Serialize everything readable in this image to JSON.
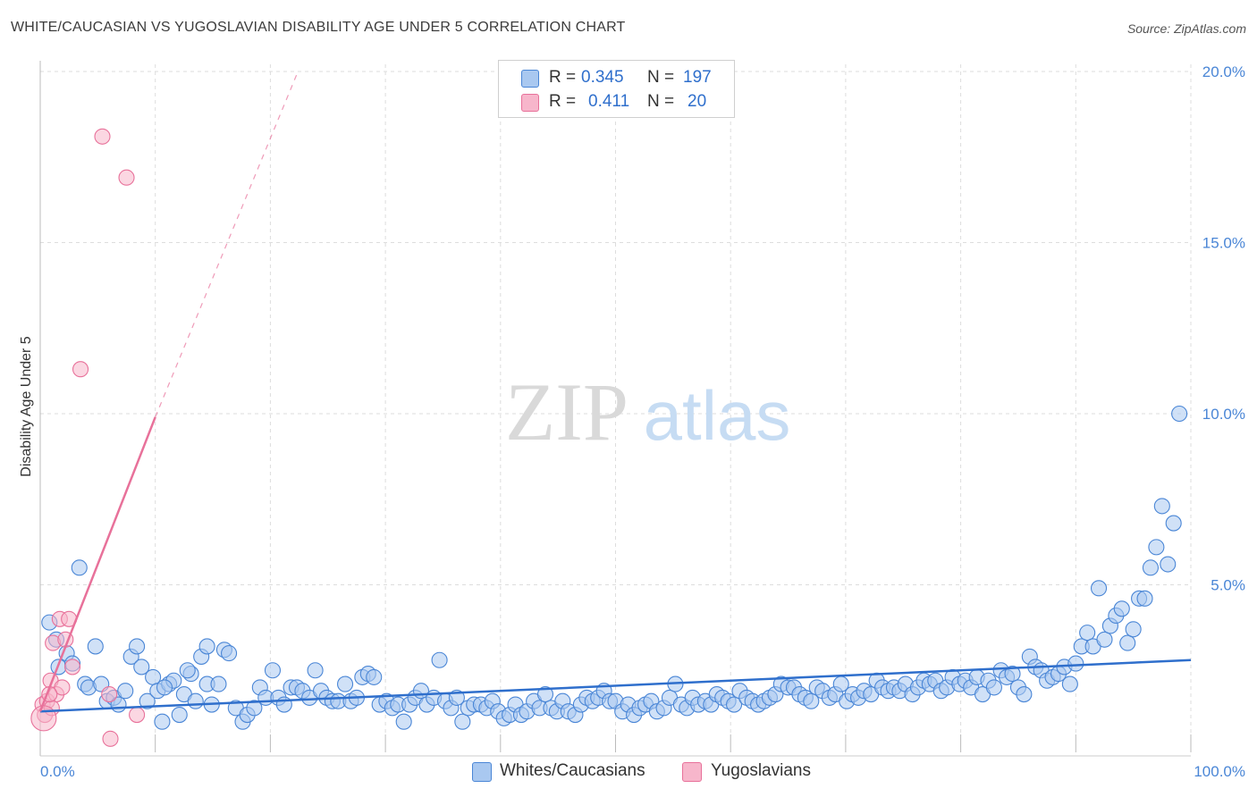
{
  "title": "WHITE/CAUCASIAN VS YUGOSLAVIAN DISABILITY AGE UNDER 5 CORRELATION CHART",
  "source": "Source: ZipAtlas.com",
  "watermark": {
    "zip": "ZIP",
    "atlas": "atlas"
  },
  "legend": {
    "rows": [
      {
        "r_label": "R =",
        "r_value": "0.345",
        "n_label": "N =",
        "n_value": "197"
      },
      {
        "r_label": "R =",
        "r_value": "0.411",
        "n_label": "N =",
        "n_value": "20"
      }
    ]
  },
  "bottom_legend": {
    "series1": "Whites/Caucasians",
    "series2": "Yugoslavians"
  },
  "colors": {
    "blue": "#4a86d6",
    "blue_fill": "#a9c8f0",
    "pink": "#e8719a",
    "pink_fill": "#f7b6cb",
    "grid": "#dddddd"
  },
  "chart_data": {
    "type": "scatter",
    "xlabel": "",
    "ylabel": "Disability Age Under 5",
    "xlim": [
      0,
      100
    ],
    "ylim": [
      0,
      20
    ],
    "x_tick_labels": [
      "0.0%",
      "100.0%"
    ],
    "y_ticks": [
      5,
      10,
      15,
      20
    ],
    "y_tick_labels": [
      "5.0%",
      "10.0%",
      "15.0%",
      "20.0%"
    ],
    "grid": true,
    "legend_placement": "top-center",
    "series": [
      {
        "name": "Whites/Caucasians",
        "trend": {
          "x": [
            0,
            100
          ],
          "y": [
            1.3,
            2.8
          ]
        },
        "points": [
          [
            0.8,
            3.9
          ],
          [
            1.4,
            3.4
          ],
          [
            1.6,
            2.6
          ],
          [
            2.3,
            3.0
          ],
          [
            2.8,
            2.7
          ],
          [
            3.4,
            5.5
          ],
          [
            3.9,
            2.1
          ],
          [
            4.2,
            2.0
          ],
          [
            4.8,
            3.2
          ],
          [
            5.3,
            2.1
          ],
          [
            5.8,
            1.6
          ],
          [
            6.4,
            1.7
          ],
          [
            6.8,
            1.5
          ],
          [
            7.4,
            1.9
          ],
          [
            7.9,
            2.9
          ],
          [
            8.4,
            3.2
          ],
          [
            8.8,
            2.6
          ],
          [
            9.3,
            1.6
          ],
          [
            9.8,
            2.3
          ],
          [
            10.2,
            1.9
          ],
          [
            10.6,
            1.0
          ],
          [
            11.2,
            2.1
          ],
          [
            11.6,
            2.2
          ],
          [
            12.1,
            1.2
          ],
          [
            12.5,
            1.8
          ],
          [
            13.1,
            2.4
          ],
          [
            13.5,
            1.6
          ],
          [
            14.0,
            2.9
          ],
          [
            14.5,
            2.1
          ],
          [
            14.9,
            1.5
          ],
          [
            15.5,
            2.1
          ],
          [
            16.0,
            3.1
          ],
          [
            16.4,
            3.0
          ],
          [
            17.0,
            1.4
          ],
          [
            17.6,
            1.0
          ],
          [
            18.0,
            1.2
          ],
          [
            18.6,
            1.4
          ],
          [
            19.1,
            2.0
          ],
          [
            19.6,
            1.7
          ],
          [
            20.2,
            2.5
          ],
          [
            20.7,
            1.7
          ],
          [
            21.2,
            1.5
          ],
          [
            21.8,
            2.0
          ],
          [
            22.3,
            2.0
          ],
          [
            22.8,
            1.9
          ],
          [
            23.4,
            1.7
          ],
          [
            23.9,
            2.5
          ],
          [
            24.4,
            1.9
          ],
          [
            24.9,
            1.7
          ],
          [
            25.4,
            1.6
          ],
          [
            25.9,
            1.6
          ],
          [
            26.5,
            2.1
          ],
          [
            27.0,
            1.6
          ],
          [
            27.5,
            1.7
          ],
          [
            28.0,
            2.3
          ],
          [
            28.5,
            2.4
          ],
          [
            29.0,
            2.3
          ],
          [
            29.5,
            1.5
          ],
          [
            30.1,
            1.6
          ],
          [
            30.6,
            1.4
          ],
          [
            31.1,
            1.5
          ],
          [
            31.6,
            1.0
          ],
          [
            32.1,
            1.5
          ],
          [
            32.6,
            1.7
          ],
          [
            33.1,
            1.9
          ],
          [
            33.6,
            1.5
          ],
          [
            34.2,
            1.7
          ],
          [
            34.7,
            2.8
          ],
          [
            35.2,
            1.6
          ],
          [
            35.7,
            1.4
          ],
          [
            36.2,
            1.7
          ],
          [
            36.7,
            1.0
          ],
          [
            37.2,
            1.4
          ],
          [
            37.7,
            1.5
          ],
          [
            38.3,
            1.5
          ],
          [
            38.8,
            1.4
          ],
          [
            39.3,
            1.6
          ],
          [
            39.8,
            1.3
          ],
          [
            40.3,
            1.1
          ],
          [
            40.8,
            1.2
          ],
          [
            41.3,
            1.5
          ],
          [
            41.8,
            1.2
          ],
          [
            42.3,
            1.3
          ],
          [
            42.9,
            1.6
          ],
          [
            43.4,
            1.4
          ],
          [
            43.9,
            1.8
          ],
          [
            44.4,
            1.4
          ],
          [
            44.9,
            1.3
          ],
          [
            45.4,
            1.6
          ],
          [
            45.9,
            1.3
          ],
          [
            46.5,
            1.2
          ],
          [
            47.0,
            1.5
          ],
          [
            47.5,
            1.7
          ],
          [
            48.0,
            1.6
          ],
          [
            48.5,
            1.7
          ],
          [
            49.0,
            1.9
          ],
          [
            49.5,
            1.6
          ],
          [
            50.0,
            1.6
          ],
          [
            50.6,
            1.3
          ],
          [
            51.1,
            1.5
          ],
          [
            51.6,
            1.2
          ],
          [
            52.1,
            1.4
          ],
          [
            52.6,
            1.5
          ],
          [
            53.1,
            1.6
          ],
          [
            53.6,
            1.3
          ],
          [
            54.2,
            1.4
          ],
          [
            54.7,
            1.7
          ],
          [
            55.2,
            2.1
          ],
          [
            55.7,
            1.5
          ],
          [
            56.2,
            1.4
          ],
          [
            56.7,
            1.7
          ],
          [
            57.2,
            1.5
          ],
          [
            57.8,
            1.6
          ],
          [
            58.3,
            1.5
          ],
          [
            58.8,
            1.8
          ],
          [
            59.3,
            1.7
          ],
          [
            59.8,
            1.6
          ],
          [
            60.3,
            1.5
          ],
          [
            60.8,
            1.9
          ],
          [
            61.4,
            1.7
          ],
          [
            61.9,
            1.6
          ],
          [
            62.4,
            1.5
          ],
          [
            62.9,
            1.6
          ],
          [
            63.4,
            1.7
          ],
          [
            63.9,
            1.8
          ],
          [
            64.4,
            2.1
          ],
          [
            65.0,
            2.0
          ],
          [
            65.5,
            2.0
          ],
          [
            66.0,
            1.8
          ],
          [
            66.5,
            1.7
          ],
          [
            67.0,
            1.6
          ],
          [
            67.5,
            2.0
          ],
          [
            68.0,
            1.9
          ],
          [
            68.6,
            1.7
          ],
          [
            69.1,
            1.8
          ],
          [
            69.6,
            2.1
          ],
          [
            70.1,
            1.6
          ],
          [
            70.6,
            1.8
          ],
          [
            71.1,
            1.7
          ],
          [
            71.6,
            1.9
          ],
          [
            72.2,
            1.8
          ],
          [
            72.7,
            2.2
          ],
          [
            73.2,
            2.0
          ],
          [
            73.7,
            1.9
          ],
          [
            74.2,
            2.0
          ],
          [
            74.7,
            1.9
          ],
          [
            75.2,
            2.1
          ],
          [
            75.8,
            1.8
          ],
          [
            76.3,
            2.0
          ],
          [
            76.8,
            2.2
          ],
          [
            77.3,
            2.1
          ],
          [
            77.8,
            2.2
          ],
          [
            78.3,
            1.9
          ],
          [
            78.8,
            2.0
          ],
          [
            79.3,
            2.3
          ],
          [
            79.9,
            2.1
          ],
          [
            80.4,
            2.2
          ],
          [
            80.9,
            2.0
          ],
          [
            81.4,
            2.3
          ],
          [
            81.9,
            1.8
          ],
          [
            82.4,
            2.2
          ],
          [
            82.9,
            2.0
          ],
          [
            83.5,
            2.5
          ],
          [
            84.0,
            2.3
          ],
          [
            84.5,
            2.4
          ],
          [
            85.0,
            2.0
          ],
          [
            85.5,
            1.8
          ],
          [
            86.0,
            2.9
          ],
          [
            86.5,
            2.6
          ],
          [
            87.0,
            2.5
          ],
          [
            87.5,
            2.2
          ],
          [
            88.0,
            2.3
          ],
          [
            88.5,
            2.4
          ],
          [
            89.0,
            2.6
          ],
          [
            89.5,
            2.1
          ],
          [
            90.0,
            2.7
          ],
          [
            90.5,
            3.2
          ],
          [
            91.0,
            3.6
          ],
          [
            91.5,
            3.2
          ],
          [
            92.0,
            4.9
          ],
          [
            92.5,
            3.4
          ],
          [
            93.0,
            3.8
          ],
          [
            93.5,
            4.1
          ],
          [
            94.0,
            4.3
          ],
          [
            94.5,
            3.3
          ],
          [
            95.0,
            3.7
          ],
          [
            95.5,
            4.6
          ],
          [
            96.0,
            4.6
          ],
          [
            96.5,
            5.5
          ],
          [
            97.0,
            6.1
          ],
          [
            97.5,
            7.3
          ],
          [
            98.0,
            5.6
          ],
          [
            98.5,
            6.8
          ],
          [
            99.0,
            10.0
          ],
          [
            14.5,
            3.2
          ],
          [
            12.8,
            2.5
          ],
          [
            10.8,
            2.0
          ]
        ]
      },
      {
        "name": "Yugoslavians",
        "trend": {
          "x": [
            0,
            10
          ],
          "y": [
            1.3,
            9.9
          ]
        },
        "trend_extension": {
          "x": [
            10,
            22.4
          ],
          "y": [
            9.9,
            20.0
          ]
        },
        "points": [
          [
            0.2,
            1.5
          ],
          [
            0.4,
            1.2
          ],
          [
            0.6,
            1.6
          ],
          [
            0.9,
            2.2
          ],
          [
            1.1,
            3.3
          ],
          [
            1.4,
            1.8
          ],
          [
            1.7,
            4.0
          ],
          [
            1.9,
            2.0
          ],
          [
            2.2,
            3.4
          ],
          [
            2.5,
            4.0
          ],
          [
            2.8,
            2.6
          ],
          [
            1.0,
            1.4
          ],
          [
            0.8,
            1.8
          ],
          [
            5.4,
            18.1
          ],
          [
            7.5,
            16.9
          ],
          [
            3.5,
            11.3
          ],
          [
            6.0,
            1.8
          ],
          [
            8.4,
            1.2
          ],
          [
            6.1,
            0.5
          ],
          [
            0.3,
            1.1
          ]
        ]
      }
    ]
  }
}
